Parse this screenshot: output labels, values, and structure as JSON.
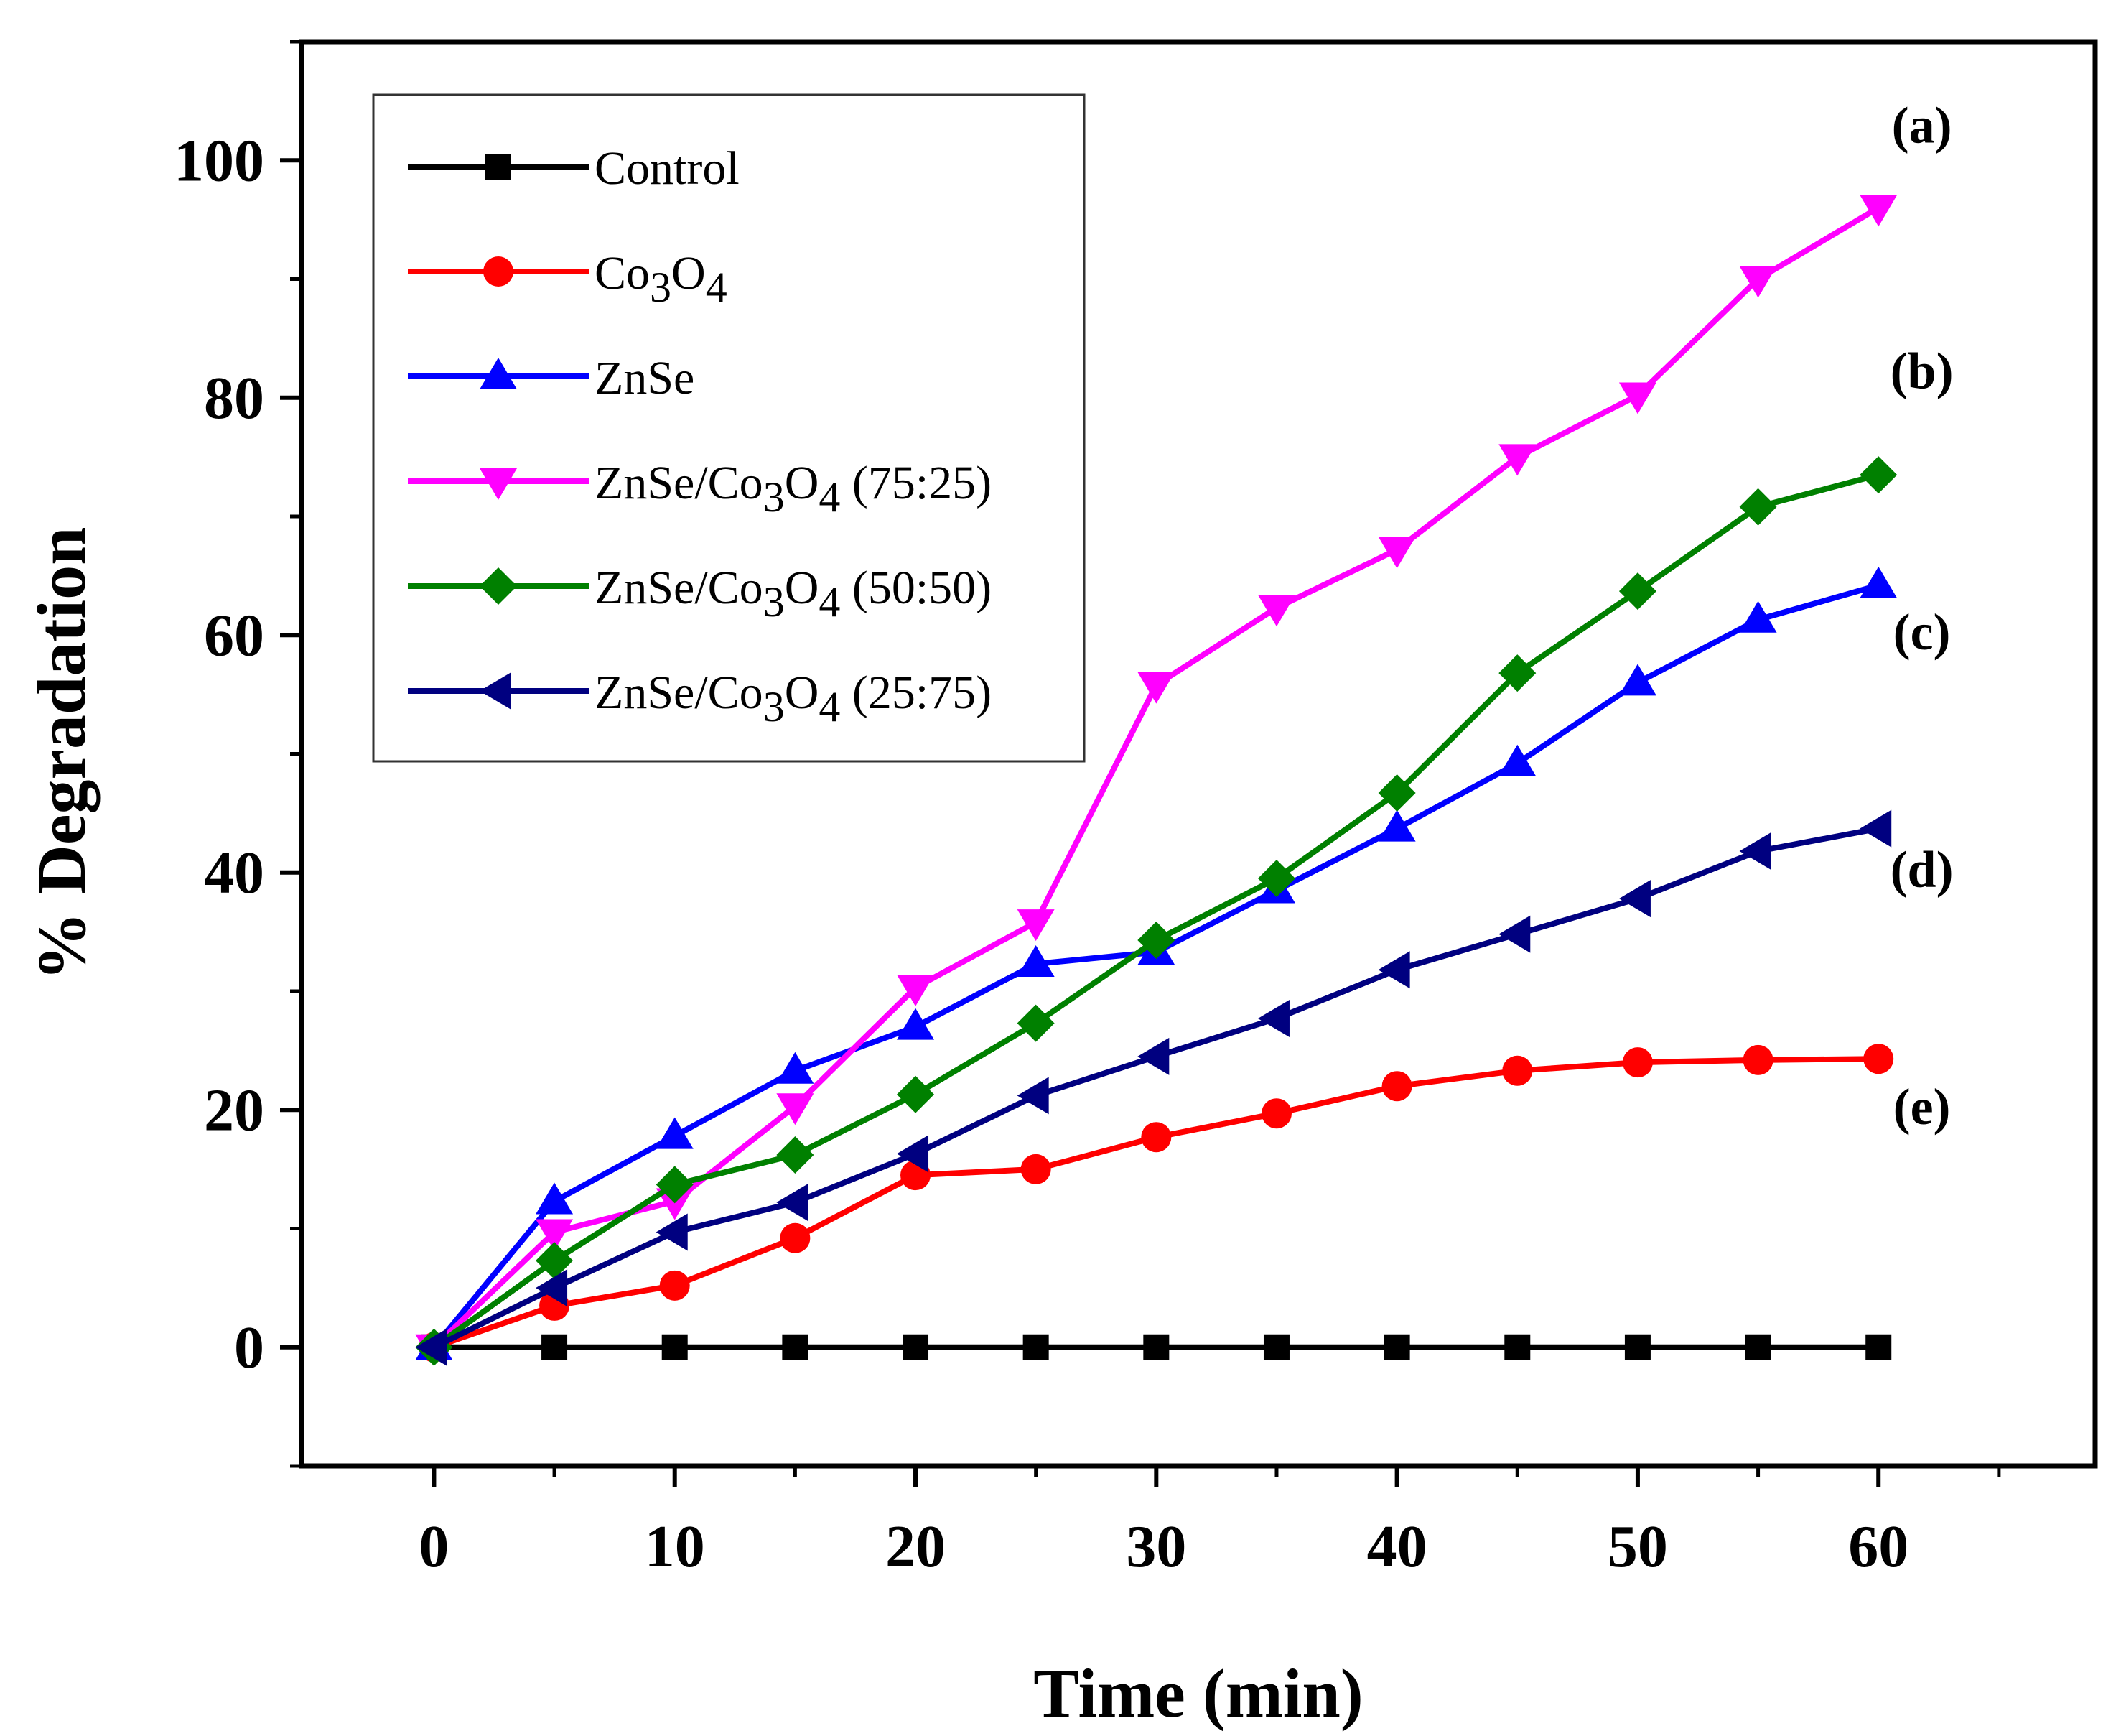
{
  "chart_data": {
    "type": "line",
    "title": "",
    "xlabel": "Time (min)",
    "ylabel": "% Degradation",
    "xlim": [
      -5.5,
      69
    ],
    "ylim": [
      -10,
      110
    ],
    "xticks": [
      0,
      10,
      20,
      30,
      40,
      50,
      60
    ],
    "yticks": [
      0,
      20,
      40,
      60,
      80,
      100
    ],
    "grid": false,
    "legend": "top-left",
    "x": [
      0,
      5,
      10,
      15,
      20,
      25,
      30,
      35,
      40,
      45,
      50,
      55,
      60
    ],
    "series": [
      {
        "name": "Control",
        "label_base": "Control",
        "label_suffix": "",
        "color": "#000000",
        "marker": "square",
        "values": [
          0,
          0,
          0,
          0,
          0,
          0,
          0,
          0,
          0,
          0,
          0,
          0,
          0
        ]
      },
      {
        "name": "Co3O4",
        "label_base": "Co",
        "label_suffix": "",
        "color": "#ff0000",
        "marker": "circle",
        "values": [
          0,
          3.5,
          5.2,
          9.2,
          14.5,
          15,
          17.7,
          19.7,
          22,
          23.3,
          24,
          24.2,
          24.3
        ]
      },
      {
        "name": "ZnSe",
        "label_base": "ZnSe",
        "label_suffix": "",
        "color": "#0000ff",
        "marker": "triangle-up",
        "values": [
          0,
          12.3,
          17.8,
          23.3,
          27,
          32.3,
          33.3,
          38.5,
          43.7,
          49.2,
          56,
          61.3,
          64.2
        ]
      },
      {
        "name": "ZnSe/Co3O4 (75:25)",
        "label_base": "ZnSe/Co",
        "label_suffix": " (75:25)",
        "color": "#ff00ff",
        "marker": "triangle-down",
        "values": [
          0,
          9.7,
          12.3,
          20.3,
          30.3,
          35.8,
          55.8,
          62.3,
          67.2,
          75,
          80.2,
          90,
          96
        ]
      },
      {
        "name": "ZnSe/Co3O4 (50:50)",
        "label_base": "ZnSe/Co",
        "label_suffix": " (50:50)",
        "color": "#008000",
        "marker": "diamond",
        "values": [
          0,
          7.3,
          13.7,
          16.2,
          21.3,
          27.3,
          34.3,
          39.5,
          46.7,
          56.8,
          63.7,
          70.8,
          73.5
        ]
      },
      {
        "name": "ZnSe/Co3O4 (25:75)",
        "label_base": "ZnSe/Co",
        "label_suffix": " (25:75)",
        "color": "#000080",
        "marker": "triangle-left",
        "values": [
          0,
          5,
          9.7,
          12.2,
          16.3,
          21.2,
          24.5,
          27.7,
          31.8,
          34.8,
          37.8,
          41.8,
          43.7
        ]
      }
    ],
    "series_tags": [
      {
        "text": "(a)",
        "y": 101.5
      },
      {
        "text": "(b)",
        "y": 80.8
      },
      {
        "text": "(c)",
        "y": 58.8
      },
      {
        "text": "(d)",
        "y": 38.8
      },
      {
        "text": "(e)",
        "y": 18.8
      }
    ]
  }
}
